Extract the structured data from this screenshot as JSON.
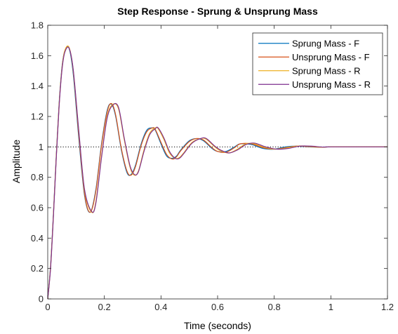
{
  "chart_data": {
    "type": "line",
    "title": "Step Response - Sprung & Unsprung Mass",
    "xlabel": "Time (seconds)",
    "ylabel": "Amplitude",
    "xlim": [
      0,
      1.2
    ],
    "ylim": [
      0,
      1.8
    ],
    "xticks": [
      0,
      0.2,
      0.4,
      0.6,
      0.8,
      1,
      1.2
    ],
    "yticks": [
      0,
      0.2,
      0.4,
      0.6,
      0.8,
      1,
      1.2,
      1.4,
      1.6,
      1.8
    ],
    "xtick_labels": [
      "0",
      "0.2",
      "0.4",
      "0.6",
      "0.8",
      "1",
      "1.2"
    ],
    "ytick_labels": [
      "0",
      "0.2",
      "0.4",
      "0.6",
      "0.8",
      "1",
      "1.2",
      "1.4",
      "1.6",
      "1.8"
    ],
    "grid": false,
    "legend_position": "top-right",
    "reference_line": {
      "y": 1,
      "style": "dotted",
      "color": "#000000"
    },
    "series": [
      {
        "name": "Sprung Mass - F",
        "color": "#0072BD",
        "x": [
          0,
          0.01,
          0.02,
          0.03,
          0.04,
          0.05,
          0.06,
          0.075,
          0.09,
          0.11,
          0.13,
          0.15,
          0.17,
          0.19,
          0.21,
          0.225,
          0.24,
          0.26,
          0.28,
          0.295,
          0.31,
          0.33,
          0.35,
          0.37,
          0.38,
          0.4,
          0.42,
          0.44,
          0.455,
          0.47,
          0.5,
          0.525,
          0.55,
          0.58,
          0.6,
          0.63,
          0.66,
          0.68,
          0.72,
          0.76,
          0.8,
          0.84,
          0.88,
          0.92,
          0.96,
          1.0,
          1.1,
          1.2
        ],
        "y": [
          0,
          0.22,
          0.56,
          0.94,
          1.28,
          1.52,
          1.63,
          1.65,
          1.48,
          1.05,
          0.68,
          0.57,
          0.72,
          1.02,
          1.24,
          1.28,
          1.2,
          0.98,
          0.83,
          0.82,
          0.88,
          1.02,
          1.11,
          1.125,
          1.11,
          1.02,
          0.94,
          0.925,
          0.94,
          0.98,
          1.04,
          1.055,
          1.04,
          0.99,
          0.97,
          0.97,
          1.0,
          1.02,
          1.015,
          0.99,
          0.985,
          1.0,
          1.005,
          1.0,
          0.998,
          1.0,
          1.0,
          1.0
        ]
      },
      {
        "name": "Unsprung Mass - F",
        "color": "#D95319",
        "x": [
          0,
          0.01,
          0.02,
          0.03,
          0.04,
          0.05,
          0.06,
          0.075,
          0.09,
          0.11,
          0.13,
          0.15,
          0.17,
          0.19,
          0.21,
          0.225,
          0.24,
          0.26,
          0.28,
          0.295,
          0.31,
          0.33,
          0.35,
          0.37,
          0.38,
          0.4,
          0.42,
          0.44,
          0.455,
          0.47,
          0.5,
          0.525,
          0.55,
          0.58,
          0.6,
          0.63,
          0.66,
          0.68,
          0.72,
          0.76,
          0.8,
          0.84,
          0.88,
          0.92,
          0.96,
          1.0,
          1.1,
          1.2
        ],
        "y": [
          0,
          0.21,
          0.55,
          0.93,
          1.27,
          1.51,
          1.63,
          1.655,
          1.5,
          1.07,
          0.69,
          0.57,
          0.71,
          1.01,
          1.23,
          1.285,
          1.21,
          0.99,
          0.84,
          0.815,
          0.87,
          1.01,
          1.1,
          1.125,
          1.115,
          1.03,
          0.95,
          0.92,
          0.935,
          0.975,
          1.035,
          1.055,
          1.045,
          0.995,
          0.97,
          0.965,
          0.995,
          1.02,
          1.02,
          0.995,
          0.985,
          0.995,
          1.005,
          1.002,
          0.998,
          1.0,
          1.0,
          1.0
        ]
      },
      {
        "name": "Sprung Mass - R",
        "color": "#EDB120",
        "x": [
          0,
          0.01,
          0.02,
          0.03,
          0.04,
          0.05,
          0.06,
          0.075,
          0.09,
          0.11,
          0.13,
          0.155,
          0.17,
          0.19,
          0.21,
          0.23,
          0.25,
          0.27,
          0.29,
          0.305,
          0.32,
          0.34,
          0.36,
          0.38,
          0.39,
          0.41,
          0.43,
          0.45,
          0.465,
          0.48,
          0.51,
          0.54,
          0.56,
          0.59,
          0.61,
          0.64,
          0.67,
          0.7,
          0.73,
          0.77,
          0.81,
          0.85,
          0.89,
          0.93,
          0.97,
          1.0,
          1.1,
          1.2
        ],
        "y": [
          0,
          0.21,
          0.55,
          0.93,
          1.27,
          1.51,
          1.63,
          1.655,
          1.5,
          1.09,
          0.71,
          0.57,
          0.64,
          0.94,
          1.2,
          1.28,
          1.25,
          1.05,
          0.87,
          0.815,
          0.84,
          0.98,
          1.09,
          1.125,
          1.12,
          1.05,
          0.96,
          0.925,
          0.93,
          0.96,
          1.03,
          1.055,
          1.05,
          1.0,
          0.975,
          0.96,
          0.985,
          1.02,
          1.02,
          0.995,
          0.985,
          0.995,
          1.006,
          1.003,
          0.998,
          1.0,
          1.0,
          1.0
        ]
      },
      {
        "name": "Unsprung Mass - R",
        "color": "#7E2F8E",
        "x": [
          0,
          0.01,
          0.02,
          0.03,
          0.04,
          0.05,
          0.06,
          0.075,
          0.09,
          0.11,
          0.13,
          0.155,
          0.17,
          0.19,
          0.21,
          0.23,
          0.25,
          0.27,
          0.29,
          0.305,
          0.32,
          0.34,
          0.36,
          0.38,
          0.39,
          0.41,
          0.43,
          0.45,
          0.465,
          0.48,
          0.51,
          0.54,
          0.56,
          0.59,
          0.61,
          0.64,
          0.67,
          0.7,
          0.73,
          0.77,
          0.81,
          0.85,
          0.89,
          0.93,
          0.97,
          1.0,
          1.1,
          1.2
        ],
        "y": [
          0,
          0.2,
          0.54,
          0.92,
          1.26,
          1.5,
          1.62,
          1.65,
          1.51,
          1.1,
          0.72,
          0.575,
          0.63,
          0.93,
          1.19,
          1.275,
          1.26,
          1.06,
          0.88,
          0.82,
          0.835,
          0.97,
          1.08,
          1.12,
          1.125,
          1.06,
          0.97,
          0.925,
          0.925,
          0.955,
          1.025,
          1.055,
          1.055,
          1.005,
          0.98,
          0.96,
          0.98,
          1.015,
          1.025,
          1.0,
          0.985,
          0.99,
          1.005,
          1.005,
          0.999,
          1.0,
          1.0,
          1.0
        ]
      }
    ]
  }
}
